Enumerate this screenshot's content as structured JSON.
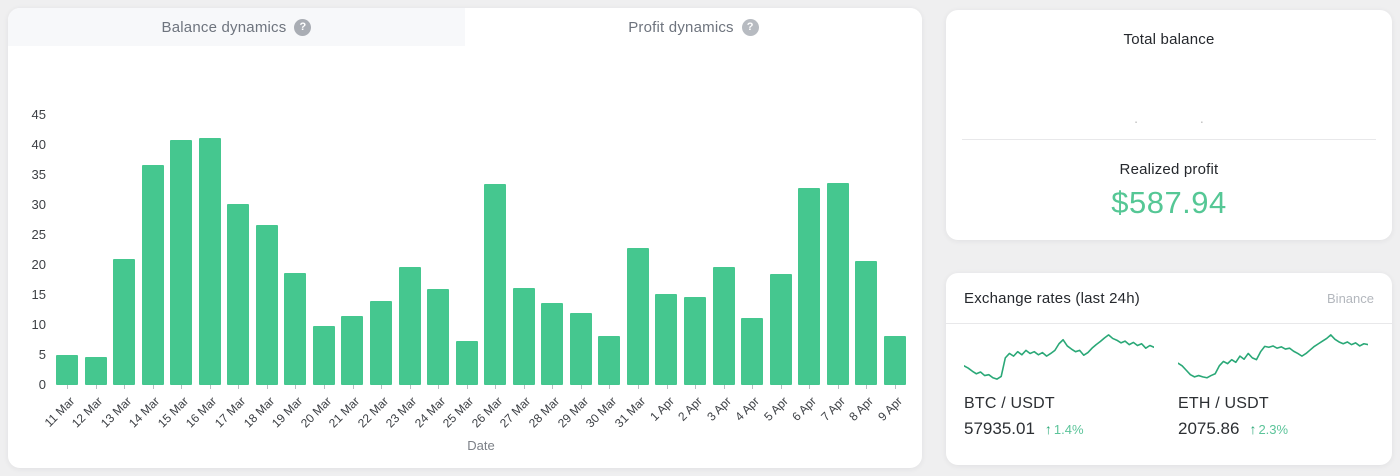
{
  "tabs": [
    {
      "label": "Balance dynamics",
      "active": false
    },
    {
      "label": "Profit dynamics",
      "active": true
    }
  ],
  "help_icon": "?",
  "chart_data": {
    "type": "bar",
    "title": "",
    "xlabel": "Date",
    "ylabel": "",
    "ylim": [
      0,
      45
    ],
    "yticks": [
      0,
      5,
      10,
      15,
      20,
      25,
      30,
      35,
      40,
      45
    ],
    "grid": false,
    "bar_color": "#45c78f",
    "categories": [
      "11 Mar",
      "12 Mar",
      "13 Mar",
      "14 Mar",
      "15 Mar",
      "16 Mar",
      "17 Mar",
      "18 Mar",
      "19 Mar",
      "20 Mar",
      "21 Mar",
      "22 Mar",
      "23 Mar",
      "24 Mar",
      "25 Mar",
      "26 Mar",
      "27 Mar",
      "28 Mar",
      "29 Mar",
      "30 Mar",
      "31 Mar",
      "1 Apr",
      "2 Apr",
      "3 Apr",
      "4 Apr",
      "5 Apr",
      "6 Apr",
      "7 Apr",
      "8 Apr",
      "9 Apr"
    ],
    "values": [
      5,
      4.7,
      21,
      36.7,
      40.8,
      41.2,
      30.2,
      26.7,
      18.7,
      9.8,
      11.5,
      14,
      19.6,
      16,
      7.4,
      33.5,
      16.1,
      13.6,
      12,
      8.1,
      22.8,
      15.1,
      14.7,
      19.7,
      11.1,
      18.5,
      32.9,
      33.6,
      20.6,
      8.2
    ]
  },
  "balance_card": {
    "title": "Total balance",
    "masked_value": ". .",
    "realized_profit_label": "Realized profit",
    "realized_profit_value": "$587.94",
    "profit_color": "#55c795"
  },
  "exchange_card": {
    "title": "Exchange rates (last 24h)",
    "source": "Binance",
    "up_arrow": "↑",
    "spark_color": "#2aa877",
    "arrow_color": "#2aa877",
    "change_color": "#5cc49a",
    "pairs": [
      {
        "name": "BTC / USDT",
        "price": "57935.01",
        "change": "1.4%",
        "spark": [
          30,
          25,
          18,
          12,
          16,
          8,
          10,
          3,
          0,
          6,
          48,
          58,
          52,
          62,
          55,
          65,
          58,
          62,
          55,
          60,
          52,
          58,
          65,
          80,
          89,
          75,
          68,
          62,
          65,
          54,
          60,
          70,
          78,
          85,
          93,
          100,
          92,
          88,
          82,
          86,
          78,
          83,
          76,
          80,
          70,
          76,
          72
        ]
      },
      {
        "name": "ETH / USDT",
        "price": "2075.86",
        "change": "2.3%",
        "spark": [
          36,
          30,
          20,
          10,
          5,
          8,
          5,
          3,
          8,
          12,
          30,
          40,
          35,
          44,
          38,
          52,
          45,
          58,
          48,
          44,
          62,
          74,
          72,
          75,
          70,
          73,
          68,
          70,
          63,
          58,
          52,
          58,
          66,
          74,
          80,
          86,
          92,
          100,
          90,
          84,
          80,
          84,
          78,
          82,
          75,
          80,
          78
        ]
      }
    ]
  }
}
